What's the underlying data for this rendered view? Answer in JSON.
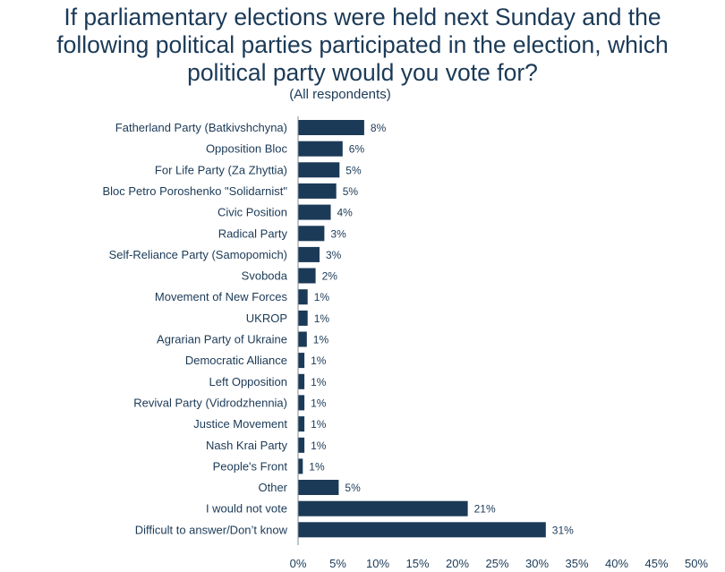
{
  "chart_data": {
    "type": "bar",
    "orientation": "horizontal",
    "title_lines": [
      "If parliamentary elections were held next Sunday and the",
      "following political parties participated in the election, which",
      "political party would you vote for?"
    ],
    "subtitle": "(All respondents)",
    "categories": [
      "Fatherland Party (Batkivshchyna)",
      "Opposition Bloc",
      "For Life Party (Za Zhyttia)",
      "Bloc Petro Poroshenko \"Solidarnist\"",
      "Civic Position",
      "Radical Party",
      "Self-Reliance Party (Samopomich)",
      "Svoboda",
      "Movement of New Forces",
      "UKROP",
      "Agrarian Party of Ukraine",
      "Democratic Alliance",
      "Left Opposition",
      "Revival Party (Vidrodzhennia)",
      "Justice Movement",
      "Nash Krai Party",
      "People's Front",
      "Other",
      "I would not vote",
      "Difficult to answer/Don’t know"
    ],
    "values": [
      8.3,
      5.6,
      5.2,
      4.8,
      4.1,
      3.3,
      2.7,
      2.2,
      1.2,
      1.2,
      1.1,
      0.8,
      0.8,
      0.8,
      0.8,
      0.8,
      0.6,
      5.1,
      21.3,
      31.1
    ],
    "value_labels": [
      "8%",
      "6%",
      "5%",
      "5%",
      "4%",
      "3%",
      "3%",
      "2%",
      "1%",
      "1%",
      "1%",
      "1%",
      "1%",
      "1%",
      "1%",
      "1%",
      "1%",
      "5%",
      "21%",
      "31%"
    ],
    "xlim": [
      0,
      50
    ],
    "x_ticks": [
      "0%",
      "5%",
      "10%",
      "15%",
      "20%",
      "25%",
      "30%",
      "35%",
      "40%",
      "45%",
      "50%"
    ],
    "grid": false,
    "bar_color": "#1b3a57",
    "text_color": "#1b3a57"
  }
}
